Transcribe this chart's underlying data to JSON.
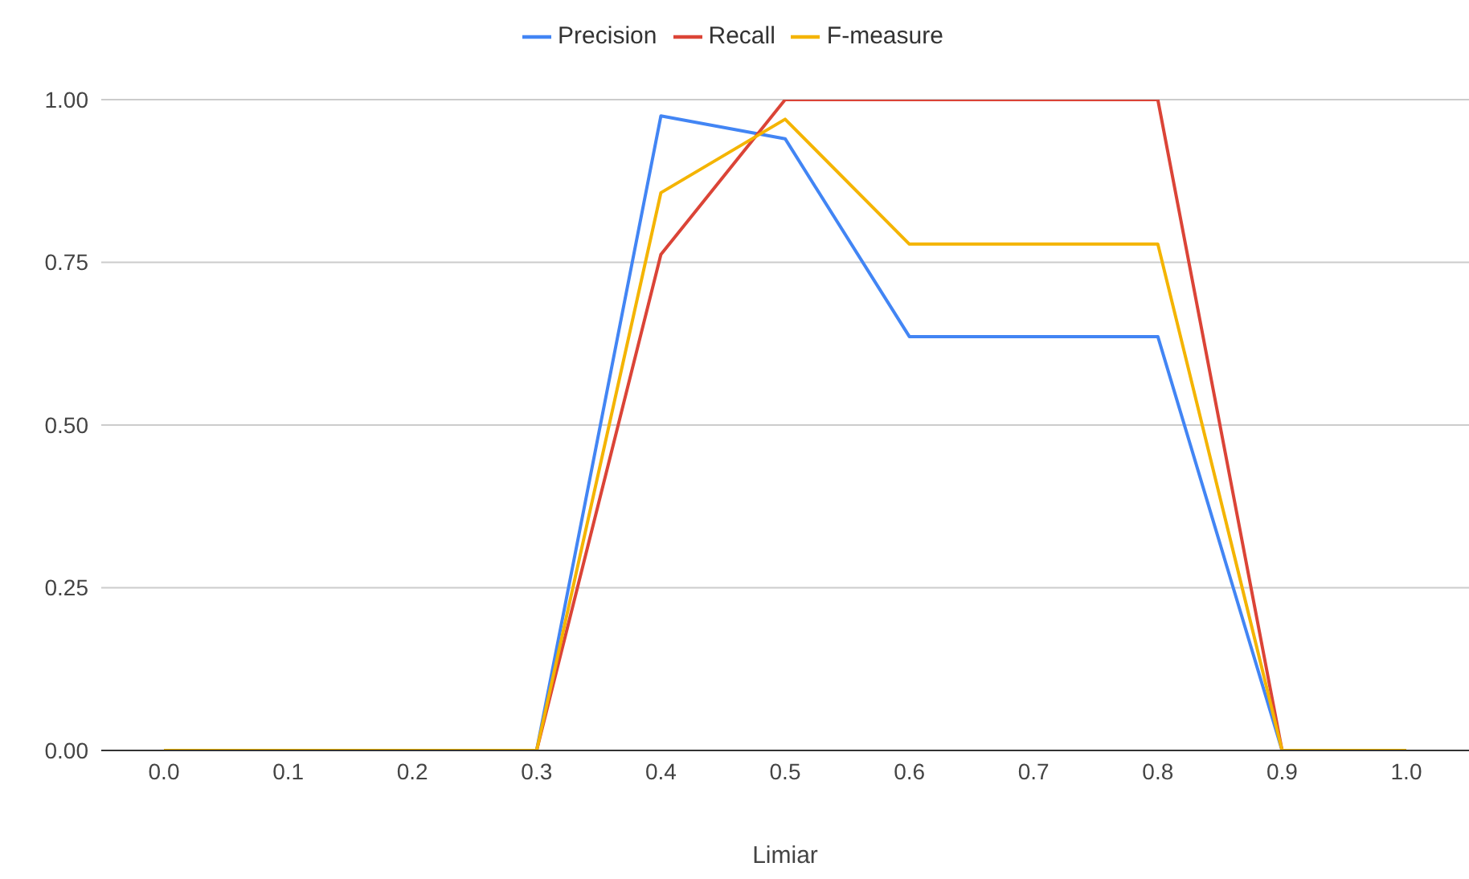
{
  "chart_data": {
    "type": "line",
    "xlabel": "Limiar",
    "categories": [
      "0.0",
      "0.1",
      "0.2",
      "0.3",
      "0.4",
      "0.5",
      "0.6",
      "0.7",
      "0.8",
      "0.9",
      "1.0"
    ],
    "series": [
      {
        "name": "Precision",
        "color": "#4285f4",
        "values": [
          null,
          null,
          null,
          0,
          0.975,
          0.94,
          0.636,
          0.636,
          0.636,
          0,
          null
        ]
      },
      {
        "name": "Recall",
        "color": "#db4437",
        "values": [
          null,
          null,
          null,
          0,
          0.762,
          1,
          1,
          1,
          1,
          0,
          null
        ]
      },
      {
        "name": "F-measure",
        "color": "#f4b400",
        "values": [
          0,
          0,
          0,
          0,
          0.857,
          0.97,
          0.778,
          0.778,
          0.778,
          0,
          0
        ]
      }
    ],
    "ylim": [
      0,
      1
    ],
    "yticks": [
      {
        "value": 0,
        "label": "0.00"
      },
      {
        "value": 0.25,
        "label": "0.25"
      },
      {
        "value": 0.5,
        "label": "0.50"
      },
      {
        "value": 0.75,
        "label": "0.75"
      },
      {
        "value": 1,
        "label": "1.00"
      }
    ],
    "grid": "y",
    "legend": "top",
    "marker": "none",
    "line_style": "solid"
  }
}
